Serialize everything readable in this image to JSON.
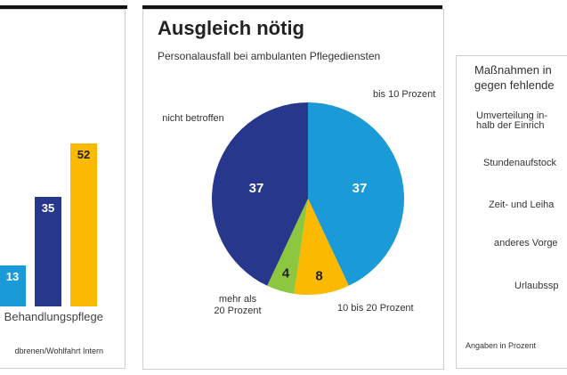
{
  "colors": {
    "light_blue": "#1a9ad6",
    "navy": "#27378c",
    "yellow": "#fbb900",
    "green": "#8dc63f"
  },
  "left_panel": {
    "category_label": "Behandlungspflege",
    "source": "dbrenen/Wohlfahrt Intern"
  },
  "middle_panel": {
    "title": "Ausgleich nötig",
    "subtitle": "Personalausfall bei ambulanten Pflegediensten"
  },
  "right_panel": {
    "title_line1": "Maßnahmen in",
    "title_line2": "gegen fehlende",
    "items": [
      "Umverteilung in-|halb der Einrich",
      "Stundenaufstock",
      "Zeit- und Leiha",
      "anderes Vorge",
      "Urlaubssp"
    ],
    "footnote": "Angaben in Prozent"
  },
  "chart_data": [
    {
      "type": "bar",
      "categories": [
        "Behandlungspflege"
      ],
      "series": [
        {
          "name": "series1",
          "values": [
            13
          ],
          "color": "#1a9ad6"
        },
        {
          "name": "series2",
          "values": [
            35
          ],
          "color": "#27378c"
        },
        {
          "name": "series3",
          "values": [
            52
          ],
          "color": "#fbb900"
        }
      ],
      "ylim": [
        0,
        60
      ]
    },
    {
      "type": "pie",
      "title": "Ausgleich nötig",
      "subtitle": "Personalausfall bei ambulanten Pflegediensten",
      "slices": [
        {
          "label": "bis 10 Prozent",
          "value": 37,
          "color": "#1a9ad6"
        },
        {
          "label": "10 bis 20 Prozent",
          "value": 8,
          "color": "#fbb900"
        },
        {
          "label": "mehr als 20 Prozent",
          "value": 4,
          "color": "#8dc63f"
        },
        {
          "label": "nicht betroffen",
          "value": 37,
          "color": "#27378c"
        }
      ]
    }
  ]
}
